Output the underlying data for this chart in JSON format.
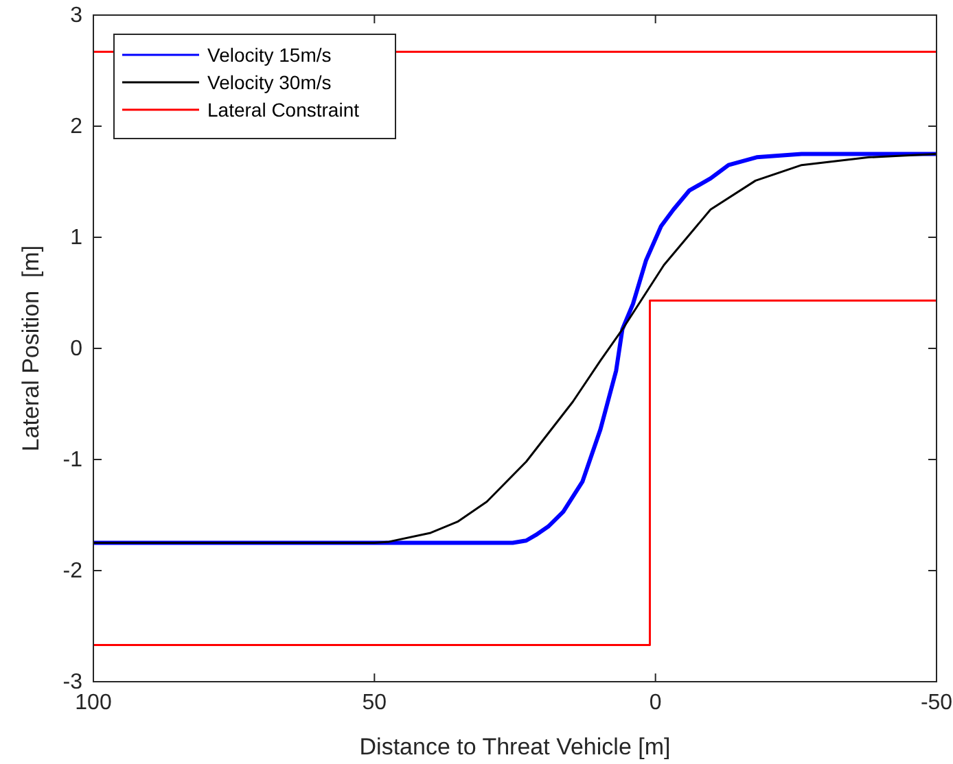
{
  "chart_data": {
    "type": "line",
    "xlabel": "Distance to Threat Vehicle [m]",
    "ylabel": "Lateral Position  [m]",
    "xlim": [
      100,
      -50
    ],
    "ylim": [
      -3,
      3
    ],
    "xticks": [
      100,
      50,
      0,
      -50
    ],
    "yticks": [
      -3,
      -2,
      -1,
      0,
      1,
      2,
      3
    ],
    "grid": false,
    "legend": "top left",
    "line_style": "solid",
    "marker": "none",
    "series": [
      {
        "name": "Velocity 15m/s",
        "color": "#0000ff",
        "x": [
          100,
          25.4,
          23,
          21.3,
          19,
          16.4,
          13,
          9.8,
          7,
          5.9,
          4,
          1.7,
          -1,
          -3.2,
          -6,
          -9.8,
          -13,
          -18,
          -26,
          -50
        ],
        "values": [
          -1.75,
          -1.75,
          -1.73,
          -1.68,
          -1.6,
          -1.47,
          -1.2,
          -0.73,
          -0.2,
          0.17,
          0.4,
          0.79,
          1.1,
          1.25,
          1.42,
          1.53,
          1.65,
          1.72,
          1.75,
          1.75
        ]
      },
      {
        "name": "Velocity 30m/s",
        "color": "#000000",
        "x": [
          100,
          50,
          47.4,
          40,
          35.2,
          30,
          23,
          14.7,
          9.8,
          5.9,
          -1.5,
          -9.8,
          -17.8,
          -26,
          -38,
          -50
        ],
        "values": [
          -1.75,
          -1.75,
          -1.74,
          -1.66,
          -1.56,
          -1.38,
          -1.02,
          -0.48,
          -0.11,
          0.17,
          0.75,
          1.25,
          1.51,
          1.65,
          1.72,
          1.75
        ]
      },
      {
        "name": "Lateral Constraint",
        "color": "#ff0000",
        "x": [
          100,
          1,
          1,
          -50
        ],
        "values": [
          -2.67,
          -2.67,
          0.43,
          0.43
        ]
      },
      {
        "color": "#ff0000",
        "x": [
          100,
          -50
        ],
        "values": [
          2.67,
          2.67
        ]
      }
    ]
  }
}
